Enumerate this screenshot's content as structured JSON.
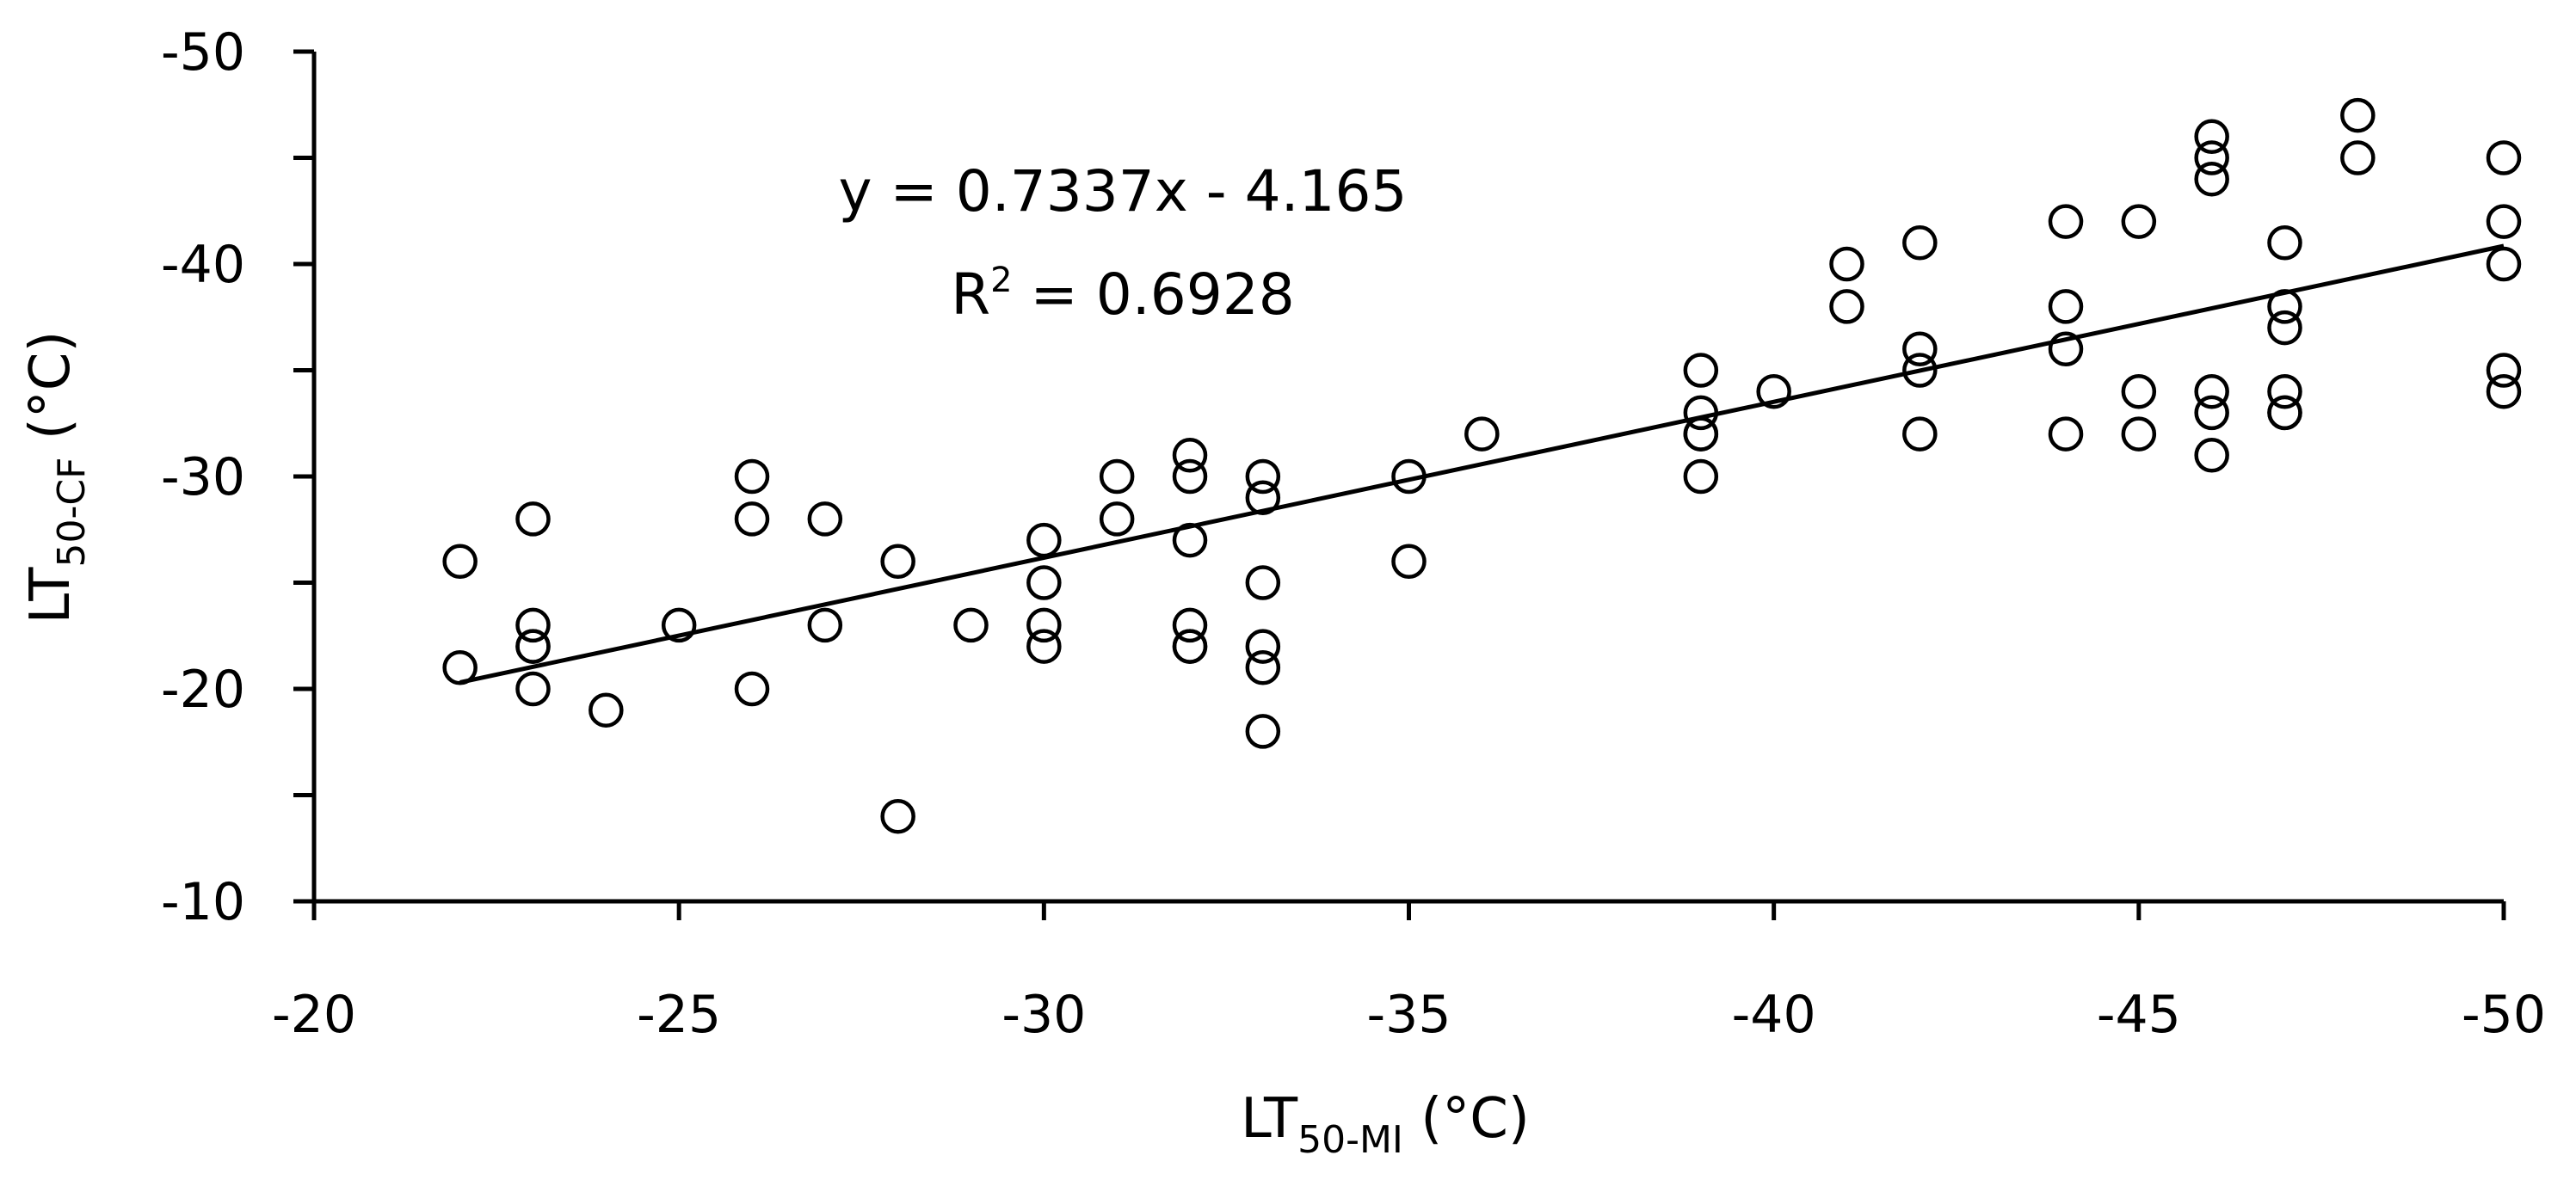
{
  "chart_data": {
    "type": "scatter",
    "title": "",
    "xlabel": {
      "main": "LT",
      "sub": "50-MI",
      "unit": " (°C)"
    },
    "ylabel": {
      "main": "LT",
      "sub": "50-CF",
      "unit": " (°C)"
    },
    "x_reversed": true,
    "y_reversed": true,
    "xlim": [
      -20,
      -50
    ],
    "ylim": [
      -10,
      -50
    ],
    "x_ticks": [
      -20,
      -25,
      -30,
      -35,
      -40,
      -45,
      -50
    ],
    "y_ticks": [
      -10,
      -20,
      -30,
      -40,
      -50
    ],
    "y_minor_ticks": [
      -15,
      -25,
      -35,
      -45
    ],
    "grid": false,
    "legend": "none",
    "marker": "open-circle",
    "colors": {
      "marker_stroke": "#000000",
      "axis": "#000000",
      "trendline": "#000000"
    },
    "series": [
      {
        "x": [
          -22,
          -22,
          -23,
          -23,
          -23,
          -23,
          -23,
          -24,
          -25,
          -26,
          -26,
          -26,
          -27,
          -27,
          -28,
          -28,
          -29,
          -30,
          -30,
          -30,
          -30,
          -31,
          -31,
          -32,
          -32,
          -32,
          -32,
          -32,
          -32,
          -33,
          -33,
          -33,
          -33,
          -33,
          -33,
          -35,
          -35,
          -36,
          -39,
          -39,
          -39,
          -39,
          -39,
          -40,
          -41,
          -41,
          -42,
          -42,
          -42,
          -42,
          -44,
          -44,
          -44,
          -44,
          -45,
          -45,
          -45,
          -46,
          -46,
          -46,
          -46,
          -46,
          -46,
          -47,
          -47,
          -47,
          -47,
          -47,
          -47,
          -48,
          -48,
          -50,
          -50,
          -50,
          -50,
          -50
        ],
        "y": [
          -26,
          -21,
          -28,
          -23,
          -22,
          -22,
          -20,
          -19,
          -23,
          -30,
          -28,
          -20,
          -28,
          -23,
          -26,
          -14,
          -23,
          -27,
          -25,
          -23,
          -22,
          -30,
          -28,
          -31,
          -30,
          -27,
          -23,
          -22,
          -22,
          -30,
          -29,
          -25,
          -22,
          -21,
          -18,
          -30,
          -26,
          -32,
          -35,
          -33,
          -32,
          -32,
          -30,
          -34,
          -40,
          -38,
          -41,
          -36,
          -35,
          -32,
          -42,
          -38,
          -36,
          -32,
          -42,
          -34,
          -32,
          -46,
          -45,
          -44,
          -34,
          -33,
          -31,
          -41,
          -38,
          -37,
          -34,
          -33,
          -33,
          -47,
          -45,
          -45,
          -42,
          -40,
          -35,
          -34
        ]
      }
    ],
    "trendline": {
      "equation_text": "y = 0.7337x - 4.165",
      "r2_label": "R",
      "r2_sup": "2",
      "r2_value_text": " = 0.6928",
      "slope": 0.7337,
      "intercept": -4.165,
      "x_range": [
        -22,
        -50
      ]
    }
  }
}
